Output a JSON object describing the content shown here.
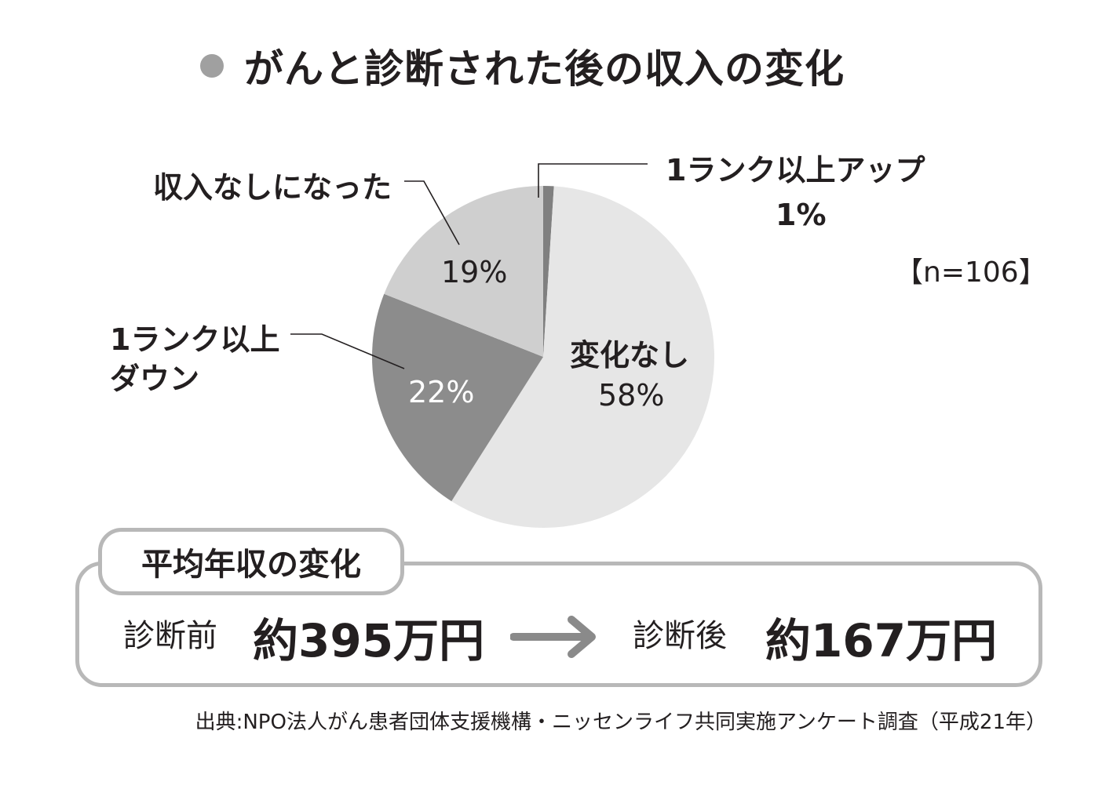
{
  "title": "がんと診断された後の収入の変化",
  "sample_size": "【n=106】",
  "chart_data": {
    "type": "pie",
    "title": "がんと診断された後の収入の変化",
    "slices": [
      {
        "label": "1ランク以上アップ",
        "value": 1,
        "value_label": "1%",
        "color": "#808080"
      },
      {
        "label": "変化なし",
        "value": 58,
        "value_label": "58%",
        "color": "#e6e6e6"
      },
      {
        "label": "1ランク以上ダウン",
        "value": 22,
        "value_label": "22%",
        "color": "#8c8c8c"
      },
      {
        "label": "収入なしになった",
        "value": 19,
        "value_label": "19%",
        "color": "#cfcfcf"
      }
    ],
    "start": "12 o'clock",
    "direction": "clockwise",
    "unit": "%"
  },
  "labels": {
    "up": "1ランク以上アップ",
    "up_pct": "1%",
    "none": "収入なしになった",
    "none_pct": "19%",
    "down_line1": "1ランク以上",
    "down_line2": "ダウン",
    "down_pct": "22%",
    "same": "変化なし",
    "same_pct": "58%"
  },
  "income_box": {
    "heading": "平均年収の変化",
    "before_label": "診断前",
    "before_value": "約395万円",
    "after_label": "診断後",
    "after_value": "約167万円"
  },
  "source": "出典:NPO法人がん患者団体支援機構・ニッセンライフ共同実施アンケート調査（平成21年）"
}
